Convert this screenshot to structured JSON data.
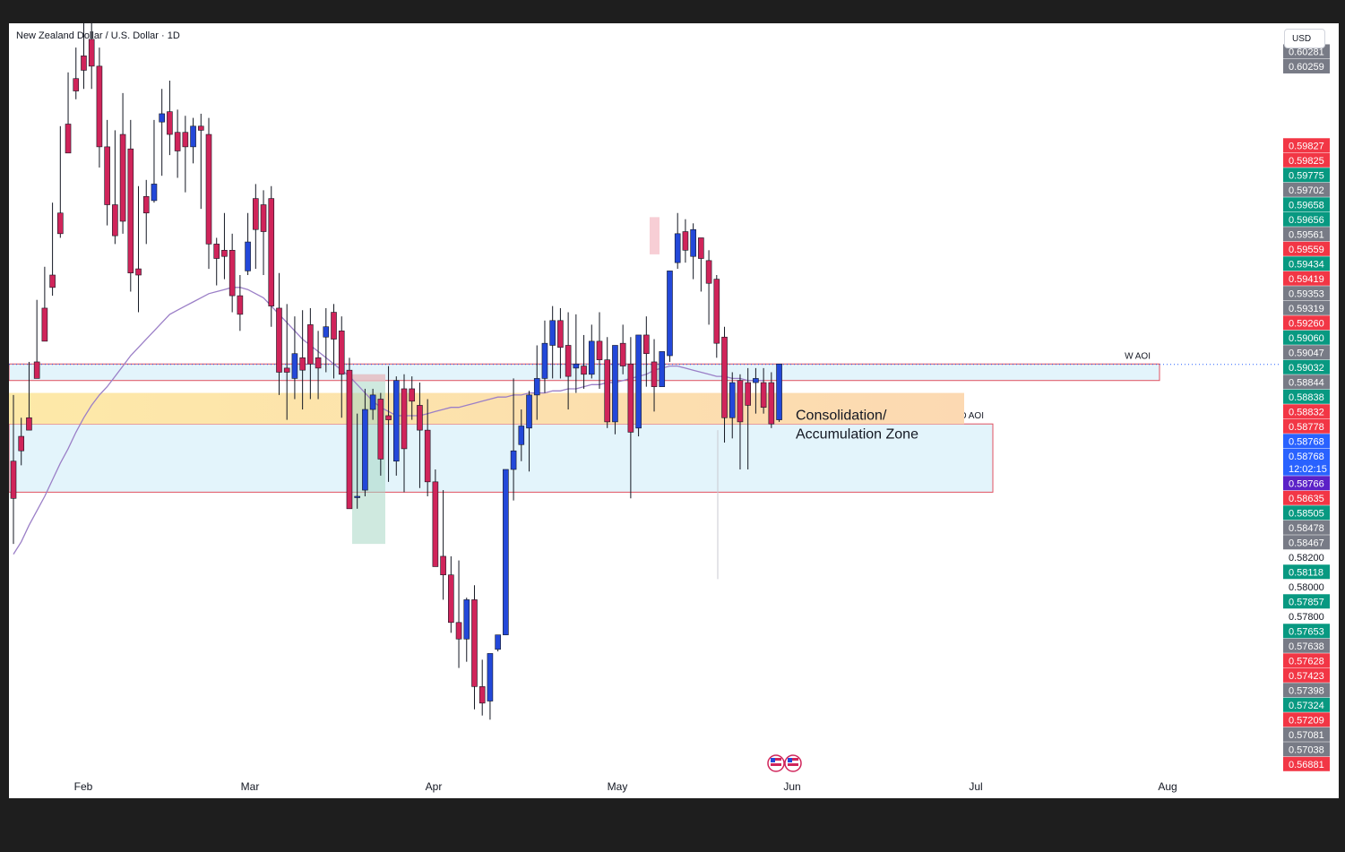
{
  "header": {
    "title": "New Zealand Dollar / U.S. Dollar · 1D",
    "currency": "USD"
  },
  "colors": {
    "up": "#2348d9",
    "down": "#d0245a",
    "ma": "#9b7fc7",
    "aoi_fill": "#e3f4fb",
    "aoi_border": "#e05060",
    "zone_fill": "#fcd9b2",
    "axis_red": "#f23645",
    "axis_green": "#089981",
    "axis_gray": "#787b86",
    "axis_blue": "#2962ff",
    "axis_purple": "#5b21c7"
  },
  "chart_data": {
    "type": "candlestick",
    "title": "New Zealand Dollar / U.S. Dollar · 1D",
    "xlabel": "",
    "ylabel": "",
    "ylim": [
      0.568,
      0.604
    ],
    "x_ticks": [
      "Feb",
      "Mar",
      "Apr",
      "May",
      "Jun",
      "Jul",
      "Aug"
    ],
    "price_labels": [
      {
        "v": 0.60281,
        "label": "0.60281",
        "c": "gray"
      },
      {
        "v": 0.60259,
        "label": "0.60259",
        "c": "gray"
      },
      {
        "v": 0.59827,
        "label": "0.59827",
        "c": "red"
      },
      {
        "v": 0.59825,
        "label": "0.59825",
        "c": "red"
      },
      {
        "v": 0.59775,
        "label": "0.59775",
        "c": "green"
      },
      {
        "v": 0.59702,
        "label": "0.59702",
        "c": "gray"
      },
      {
        "v": 0.59658,
        "label": "0.59658",
        "c": "green"
      },
      {
        "v": 0.59656,
        "label": "0.59656",
        "c": "green"
      },
      {
        "v": 0.59561,
        "label": "0.59561",
        "c": "gray"
      },
      {
        "v": 0.59559,
        "label": "0.59559",
        "c": "red"
      },
      {
        "v": 0.59434,
        "label": "0.59434",
        "c": "green"
      },
      {
        "v": 0.59419,
        "label": "0.59419",
        "c": "red"
      },
      {
        "v": 0.59353,
        "label": "0.59353",
        "c": "gray"
      },
      {
        "v": 0.59319,
        "label": "0.59319",
        "c": "gray"
      },
      {
        "v": 0.5926,
        "label": "0.59260",
        "c": "red"
      },
      {
        "v": 0.5906,
        "label": "0.59060",
        "c": "green"
      },
      {
        "v": 0.59047,
        "label": "0.59047",
        "c": "gray"
      },
      {
        "v": 0.59032,
        "label": "0.59032",
        "c": "green"
      },
      {
        "v": 0.58844,
        "label": "0.58844",
        "c": "gray"
      },
      {
        "v": 0.58838,
        "label": "0.58838",
        "c": "green"
      },
      {
        "v": 0.58832,
        "label": "0.58832",
        "c": "red"
      },
      {
        "v": 0.58778,
        "label": "0.58778",
        "c": "red"
      },
      {
        "v": 0.58768,
        "label": "0.58768",
        "c": "blue"
      },
      {
        "v": 0.58768,
        "label": "0.58768",
        "c": "blue",
        "sub": "12:02:15"
      },
      {
        "v": 0.58766,
        "label": "0.58766",
        "c": "purple"
      },
      {
        "v": 0.58635,
        "label": "0.58635",
        "c": "red"
      },
      {
        "v": 0.58505,
        "label": "0.58505",
        "c": "green"
      },
      {
        "v": 0.58478,
        "label": "0.58478",
        "c": "gray"
      },
      {
        "v": 0.58467,
        "label": "0.58467",
        "c": "gray"
      },
      {
        "v": 0.582,
        "label": "0.58200",
        "c": "plain"
      },
      {
        "v": 0.58118,
        "label": "0.58118",
        "c": "green"
      },
      {
        "v": 0.58,
        "label": "0.58000",
        "c": "plain"
      },
      {
        "v": 0.57857,
        "label": "0.57857",
        "c": "green"
      },
      {
        "v": 0.578,
        "label": "0.57800",
        "c": "plain"
      },
      {
        "v": 0.57653,
        "label": "0.57653",
        "c": "green"
      },
      {
        "v": 0.57638,
        "label": "0.57638",
        "c": "gray"
      },
      {
        "v": 0.57628,
        "label": "0.57628",
        "c": "red"
      },
      {
        "v": 0.57423,
        "label": "0.57423",
        "c": "red"
      },
      {
        "v": 0.57398,
        "label": "0.57398",
        "c": "gray"
      },
      {
        "v": 0.57324,
        "label": "0.57324",
        "c": "green"
      },
      {
        "v": 0.57209,
        "label": "0.57209",
        "c": "red"
      },
      {
        "v": 0.57081,
        "label": "0.57081",
        "c": "gray"
      },
      {
        "v": 0.57038,
        "label": "0.57038",
        "c": "gray"
      },
      {
        "v": 0.56881,
        "label": "0.56881",
        "c": "red"
      }
    ],
    "zones": [
      {
        "name": "W AOI",
        "label": "W AOI",
        "top": 0.5877,
        "bottom": 0.5869,
        "end": "late Jul"
      },
      {
        "name": "D AOI",
        "label": "D AOI",
        "top": 0.5848,
        "bottom": 0.5815,
        "end": "early Jul"
      },
      {
        "name": "Consolidation/ Accumulation Zone",
        "label_lines": [
          "Consolidation/",
          "Accumulation Zone"
        ],
        "top": 0.5863,
        "bottom": 0.5848,
        "end": "end of Jun"
      }
    ],
    "candles": [
      [
        0.583,
        0.5862,
        0.5812,
        0.579
      ],
      [
        0.5842,
        0.5851,
        0.5835,
        0.5828
      ],
      [
        0.5851,
        0.5878,
        0.5845,
        0.5849
      ],
      [
        0.5878,
        0.5908,
        0.587,
        0.5872
      ],
      [
        0.5904,
        0.5924,
        0.5888,
        0.5894
      ],
      [
        0.592,
        0.5955,
        0.5914,
        0.591
      ],
      [
        0.595,
        0.5992,
        0.594,
        0.5938
      ],
      [
        0.5993,
        0.6018,
        0.5979,
        0.598
      ],
      [
        0.6015,
        0.603,
        0.6009,
        0.6005
      ],
      [
        0.6026,
        0.6042,
        0.6019,
        0.601
      ],
      [
        0.6034,
        0.6048,
        0.6021,
        0.601
      ],
      [
        0.6021,
        0.603,
        0.5982,
        0.5972
      ],
      [
        0.5982,
        0.5995,
        0.5954,
        0.5944
      ],
      [
        0.5954,
        0.599,
        0.5939,
        0.5935
      ],
      [
        0.5988,
        0.6008,
        0.5946,
        0.594
      ],
      [
        0.5981,
        0.5995,
        0.5921,
        0.5912
      ],
      [
        0.5923,
        0.5963,
        0.592,
        0.5902
      ],
      [
        0.5958,
        0.5966,
        0.595,
        0.5935
      ],
      [
        0.5956,
        0.5995,
        0.5964,
        0.5955
      ],
      [
        0.5994,
        0.601,
        0.5998,
        0.5968
      ],
      [
        0.5999,
        0.6014,
        0.5988,
        0.5978
      ],
      [
        0.5989,
        0.6,
        0.598,
        0.5967
      ],
      [
        0.5989,
        0.5997,
        0.5982,
        0.596
      ],
      [
        0.5982,
        0.5996,
        0.5992,
        0.5974
      ],
      [
        0.5992,
        0.5998,
        0.599,
        0.5952
      ],
      [
        0.5988,
        0.5996,
        0.5935,
        0.5923
      ],
      [
        0.5935,
        0.5938,
        0.5928,
        0.5915
      ],
      [
        0.5932,
        0.595,
        0.5929,
        0.5918
      ],
      [
        0.5932,
        0.594,
        0.591,
        0.5902
      ],
      [
        0.591,
        0.592,
        0.5901,
        0.5893
      ],
      [
        0.5922,
        0.595,
        0.5936,
        0.592
      ],
      [
        0.5957,
        0.5964,
        0.5942,
        0.5923
      ],
      [
        0.5954,
        0.5961,
        0.5941,
        0.592
      ],
      [
        0.5957,
        0.5963,
        0.5905,
        0.5895
      ],
      [
        0.5904,
        0.5921,
        0.5873,
        0.5862
      ],
      [
        0.5875,
        0.5906,
        0.5873,
        0.585
      ],
      [
        0.587,
        0.59,
        0.5882,
        0.586
      ],
      [
        0.588,
        0.5903,
        0.5874,
        0.5855
      ],
      [
        0.5896,
        0.5904,
        0.5877,
        0.586
      ],
      [
        0.588,
        0.5893,
        0.5875,
        0.586
      ],
      [
        0.589,
        0.5904,
        0.5895,
        0.5873
      ],
      [
        0.5902,
        0.5906,
        0.5889,
        0.587
      ],
      [
        0.5893,
        0.59,
        0.5872,
        0.5851
      ],
      [
        0.5874,
        0.588,
        0.5807,
        0.5808
      ],
      [
        0.5813,
        0.5853,
        0.5813,
        0.5807
      ],
      [
        0.5816,
        0.5865,
        0.5855,
        0.5813
      ],
      [
        0.5855,
        0.5865,
        0.5862,
        0.585
      ],
      [
        0.586,
        0.5863,
        0.5831,
        0.5823
      ],
      [
        0.5852,
        0.5876,
        0.585,
        0.582
      ],
      [
        0.583,
        0.5871,
        0.5869,
        0.5823
      ],
      [
        0.5865,
        0.5872,
        0.5836,
        0.5815
      ],
      [
        0.5865,
        0.5871,
        0.5859,
        0.585
      ],
      [
        0.5857,
        0.5868,
        0.5845,
        0.5817
      ],
      [
        0.5845,
        0.586,
        0.582,
        0.5813
      ],
      [
        0.582,
        0.5826,
        0.5779,
        0.5795
      ],
      [
        0.5784,
        0.5816,
        0.5775,
        0.5763
      ],
      [
        0.5775,
        0.5784,
        0.5752,
        0.5747
      ],
      [
        0.5752,
        0.5782,
        0.5744,
        0.573
      ],
      [
        0.5744,
        0.5764,
        0.5763,
        0.5733
      ],
      [
        0.5763,
        0.577,
        0.5721,
        0.571
      ],
      [
        0.5721,
        0.5734,
        0.5713,
        0.5707
      ],
      [
        0.5714,
        0.572,
        0.5737,
        0.5705
      ],
      [
        0.5739,
        0.5745,
        0.5746,
        0.5738
      ],
      [
        0.5746,
        0.5815,
        0.5826,
        0.577
      ],
      [
        0.5826,
        0.587,
        0.5835,
        0.5811
      ],
      [
        0.5838,
        0.5855,
        0.5847,
        0.583
      ],
      [
        0.5846,
        0.5864,
        0.5862,
        0.5825
      ],
      [
        0.5862,
        0.5886,
        0.587,
        0.585
      ],
      [
        0.587,
        0.5898,
        0.5887,
        0.5863
      ],
      [
        0.5886,
        0.5905,
        0.5898,
        0.587
      ],
      [
        0.5898,
        0.5904,
        0.5885,
        0.587
      ],
      [
        0.5886,
        0.5902,
        0.5871,
        0.5855
      ],
      [
        0.5875,
        0.5901,
        0.5877,
        0.5863
      ],
      [
        0.5876,
        0.5891,
        0.5872,
        0.5865
      ],
      [
        0.5872,
        0.5896,
        0.5888,
        0.587
      ],
      [
        0.5888,
        0.5902,
        0.5879,
        0.5865
      ],
      [
        0.5879,
        0.589,
        0.5849,
        0.5846
      ],
      [
        0.5849,
        0.5872,
        0.5886,
        0.5843
      ],
      [
        0.5887,
        0.5896,
        0.5876,
        0.5872
      ],
      [
        0.5877,
        0.589,
        0.5844,
        0.5812
      ],
      [
        0.5846,
        0.5871,
        0.5891,
        0.5842
      ],
      [
        0.5891,
        0.59,
        0.5882,
        0.5866
      ],
      [
        0.5878,
        0.5889,
        0.5866,
        0.5854
      ],
      [
        0.5866,
        0.588,
        0.5883,
        0.587
      ],
      [
        0.5881,
        0.5916,
        0.5922,
        0.5878
      ],
      [
        0.5926,
        0.595,
        0.594,
        0.5923
      ],
      [
        0.5941,
        0.5947,
        0.5932,
        0.5926
      ],
      [
        0.5929,
        0.5945,
        0.5942,
        0.5918
      ],
      [
        0.5938,
        0.5935,
        0.5928,
        0.5912
      ],
      [
        0.5927,
        0.5932,
        0.5916,
        0.5896
      ],
      [
        0.5918,
        0.592,
        0.5887,
        0.588
      ],
      [
        0.589,
        0.5895,
        0.5851,
        0.5839
      ],
      [
        0.5851,
        0.5873,
        0.5868,
        0.5841
      ],
      [
        0.5869,
        0.5872,
        0.5849,
        0.5826
      ],
      [
        0.5868,
        0.5875,
        0.5857,
        0.5826
      ],
      [
        0.5868,
        0.5875,
        0.587,
        0.5853
      ],
      [
        0.5868,
        0.5875,
        0.5856,
        0.5853
      ],
      [
        0.5868,
        0.5873,
        0.5848,
        0.5846
      ],
      [
        0.585,
        0.587,
        0.5877,
        0.5849
      ]
    ],
    "moving_average": [
      0.5785,
      0.5791,
      0.5799,
      0.5806,
      0.5813,
      0.5821,
      0.5829,
      0.5836,
      0.5844,
      0.5851,
      0.5857,
      0.5862,
      0.5866,
      0.5871,
      0.5876,
      0.5881,
      0.5885,
      0.5889,
      0.5893,
      0.5897,
      0.5901,
      0.5903,
      0.5905,
      0.5907,
      0.5909,
      0.5911,
      0.5912,
      0.5913,
      0.5914,
      0.5914,
      0.5913,
      0.5911,
      0.5909,
      0.5905,
      0.5901,
      0.5897,
      0.5893,
      0.5889,
      0.5886,
      0.5883,
      0.588,
      0.5877,
      0.5874,
      0.5871,
      0.5867,
      0.5863,
      0.5859,
      0.5856,
      0.5854,
      0.5852,
      0.5852,
      0.5852,
      0.5852,
      0.5853,
      0.5854,
      0.5855,
      0.5856,
      0.5856,
      0.5857,
      0.5858,
      0.5859,
      0.586,
      0.5861,
      0.5861,
      0.5862,
      0.5862,
      0.5863,
      0.5863,
      0.5863,
      0.5864,
      0.5864,
      0.5865,
      0.5865,
      0.5866,
      0.5867,
      0.5867,
      0.5868,
      0.5868,
      0.5869,
      0.587,
      0.5871,
      0.5872,
      0.5874,
      0.5875,
      0.5876,
      0.5876,
      0.5875,
      0.5874,
      0.5873,
      0.5872,
      0.5871,
      0.5871,
      0.587,
      0.587,
      0.5869,
      0.5869,
      0.5869
    ]
  }
}
